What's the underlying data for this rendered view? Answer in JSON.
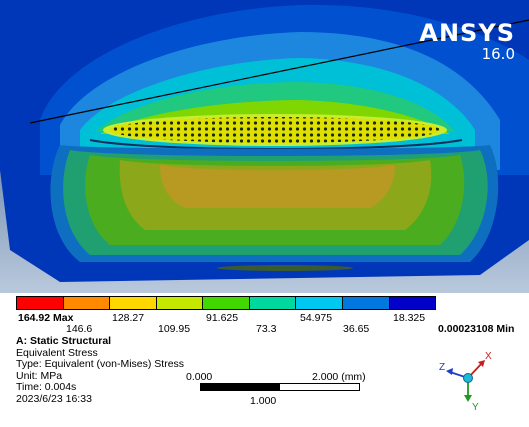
{
  "brand": {
    "name": "ANSYS",
    "version": "16.0"
  },
  "legend": {
    "colors": [
      "#ff0000",
      "#ff8a00",
      "#ffd700",
      "#c4e800",
      "#40d800",
      "#00d8a0",
      "#00c8f0",
      "#0078e0",
      "#0000c8"
    ],
    "max_label": "164.92 Max",
    "min_label": "0.00023108 Min",
    "top_labels": [
      "128.27",
      "91.625",
      "54.975",
      "18.325"
    ],
    "bottom_labels": [
      "146.6",
      "109.95",
      "73.3",
      "36.65"
    ]
  },
  "info": {
    "title": "A: Static Structural",
    "result": "Equivalent Stress",
    "type": "Type: Equivalent (von-Mises) Stress",
    "unit": "Unit: MPa",
    "time": "Time: 0.004s",
    "date": "2023/6/23 16:33"
  },
  "scale": {
    "start": "0.000",
    "end": "2.000 (mm)",
    "mid": "1.000"
  },
  "triad": {
    "x": "X",
    "y": "Y",
    "z": "Z"
  }
}
